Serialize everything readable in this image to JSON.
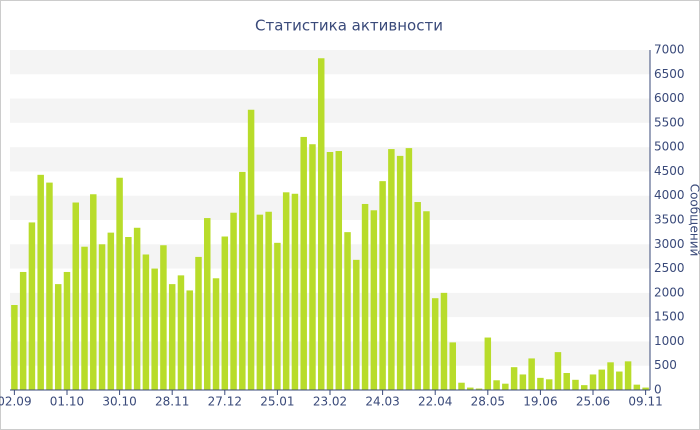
{
  "chart_data": {
    "type": "bar",
    "title": "Статистика активности",
    "y_label": "Сообщений",
    "categories": [
      "02.09",
      null,
      null,
      null,
      null,
      null,
      "01.10",
      null,
      null,
      null,
      null,
      null,
      "30.10",
      null,
      null,
      null,
      null,
      null,
      "28.11",
      null,
      null,
      null,
      null,
      null,
      "27.12",
      null,
      null,
      null,
      null,
      null,
      "25.01",
      null,
      null,
      null,
      null,
      null,
      "23.02",
      null,
      null,
      null,
      null,
      null,
      "24.03",
      null,
      null,
      null,
      null,
      null,
      "22.04",
      null,
      null,
      null,
      null,
      null,
      "28.05",
      null,
      null,
      null,
      null,
      null,
      "19.06",
      null,
      null,
      null,
      null,
      null,
      "25.06",
      null,
      null,
      null,
      null,
      null,
      "09.11"
    ],
    "values": [
      1750,
      2430,
      3450,
      4430,
      4270,
      2180,
      2430,
      3860,
      2950,
      4030,
      3000,
      3240,
      4370,
      3150,
      3340,
      2790,
      2500,
      2980,
      2180,
      2360,
      2050,
      2740,
      3540,
      2300,
      3160,
      3650,
      4490,
      5770,
      3610,
      3670,
      3030,
      4070,
      4040,
      5210,
      5060,
      6830,
      4900,
      4920,
      3250,
      2680,
      3830,
      3700,
      4300,
      4960,
      4820,
      4980,
      3870,
      3680,
      1890,
      2000,
      980,
      150,
      50,
      30,
      1080,
      200,
      130,
      470,
      320,
      650,
      250,
      220,
      780,
      350,
      210,
      100,
      320,
      420,
      570,
      380,
      590,
      110,
      50
    ],
    "color": "#b8dc2a",
    "ylim": [
      0,
      7000
    ],
    "yticks": [
      0,
      500,
      1000,
      1500,
      2000,
      2500,
      3000,
      3500,
      4000,
      4500,
      5000,
      5500,
      6000,
      6500,
      7000
    ],
    "grid": true
  }
}
